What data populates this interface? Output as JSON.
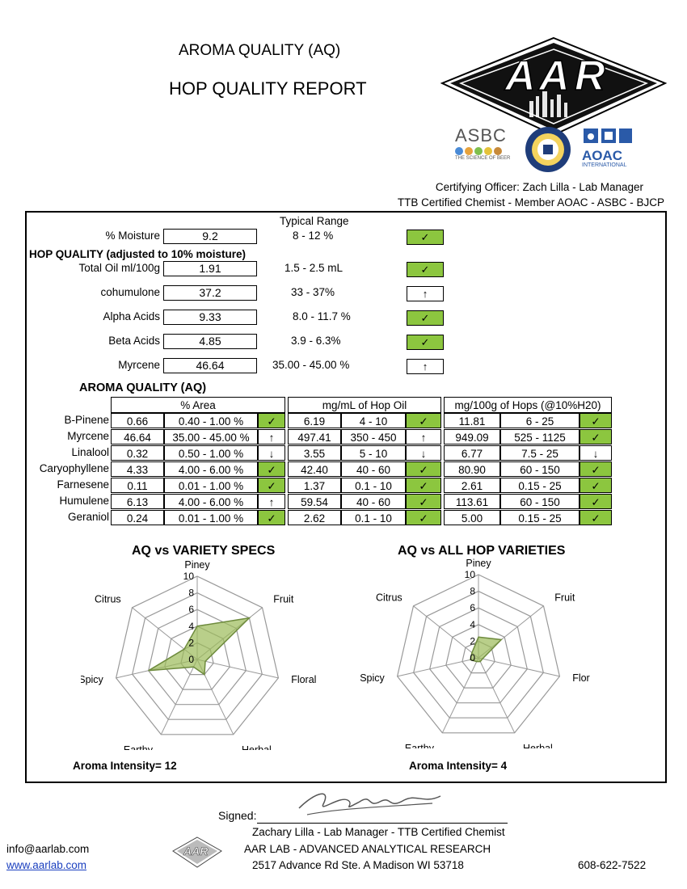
{
  "header": {
    "title1": "AROMA QUALITY (AQ)",
    "title2": "HOP QUALITY REPORT",
    "logo_text": "AAR",
    "asbc_name": "ASBC",
    "asbc_tagline": "THE SCIENCE OF BEER",
    "aoac_name": "AOAC",
    "aoac_sub": "INTERNATIONAL",
    "certifying": "Certifying Officer: Zach Lilla - Lab Manager",
    "ttb": "TTB Certified Chemist - Member AOAC - ASBC - BJCP"
  },
  "quality": {
    "typical_range_header": "Typical Range",
    "hop_quality_heading": "HOP QUALITY  (adjusted to 10% moisture)",
    "rows": [
      {
        "label": "% Moisture",
        "value": "9.2",
        "range": "8 - 12 %",
        "status": "✓"
      },
      {
        "label": "Total Oil ml/100g",
        "value": "1.91",
        "range": "1.5 - 2.5 mL",
        "status": "✓"
      },
      {
        "label": "cohumulone",
        "value": "37.2",
        "range": "33 - 37%",
        "status": "↑"
      },
      {
        "label": "Alpha Acids",
        "value": "9.33",
        "range": "8.0 - 11.7 %",
        "status": "✓"
      },
      {
        "label": "Beta Acids",
        "value": "4.85",
        "range": "3.9 - 6.3%",
        "status": "✓"
      },
      {
        "label": "Myrcene",
        "value": "46.64",
        "range": "35.00  -  45.00 %",
        "status": "↑"
      }
    ]
  },
  "aroma_table": {
    "heading": "AROMA QUALITY (AQ)",
    "groups": [
      "% Area",
      "mg/mL of Hop Oil",
      "mg/100g of Hops (@10%H20)"
    ],
    "rows": [
      {
        "name": "B-Pinene",
        "a": "0.66",
        "ar": "0.40  -  1.00 %",
        "as": "✓",
        "b": "6.19",
        "br": "4  -  10",
        "bs": "✓",
        "c": "11.81",
        "cr": "6  -  25",
        "cs": "✓"
      },
      {
        "name": "Myrcene",
        "a": "46.64",
        "ar": "35.00  -  45.00 %",
        "as": "↑",
        "b": "497.41",
        "br": "350  -  450",
        "bs": "↑",
        "c": "949.09",
        "cr": "525  -  1125",
        "cs": "✓"
      },
      {
        "name": "Linalool",
        "a": "0.32",
        "ar": "0.50  -  1.00 %",
        "as": "↓",
        "b": "3.55",
        "br": "5  -  10",
        "bs": "↓",
        "c": "6.77",
        "cr": "7.5  -  25",
        "cs": "↓"
      },
      {
        "name": "Caryophyllene",
        "a": "4.33",
        "ar": "4.00  -  6.00 %",
        "as": "✓",
        "b": "42.40",
        "br": "40  -  60",
        "bs": "✓",
        "c": "80.90",
        "cr": "60  -  150",
        "cs": "✓"
      },
      {
        "name": "Farnesene",
        "a": "0.11",
        "ar": "0.01  -  1.00 %",
        "as": "✓",
        "b": "1.37",
        "br": "0.1  -  10",
        "bs": "✓",
        "c": "2.61",
        "cr": "0.15  -  25",
        "cs": "✓"
      },
      {
        "name": "Humulene",
        "a": "6.13",
        "ar": "4.00  -  6.00 %",
        "as": "↑",
        "b": "59.54",
        "br": "40  -  60",
        "bs": "✓",
        "c": "113.61",
        "cr": "60  -  150",
        "cs": "✓"
      },
      {
        "name": "Geraniol",
        "a": "0.24",
        "ar": "0.01  -  1.00 %",
        "as": "✓",
        "b": "2.62",
        "br": "0.1  -  10",
        "bs": "✓",
        "c": "5.00",
        "cr": "0.15  -  25",
        "cs": "✓"
      }
    ]
  },
  "charts": {
    "left_title": "AQ vs VARIETY SPECS",
    "right_title": "AQ vs ALL HOP VARIETIES",
    "left_intensity": "Aroma Intensity=  12",
    "right_intensity": "Aroma Intensity=  4"
  },
  "chart_data": [
    {
      "type": "radar",
      "title": "AQ vs VARIETY SPECS",
      "axes": [
        "Piney",
        "Fruit",
        "Floral",
        "Herbal",
        "Earthy",
        "Spicy",
        "Citrus"
      ],
      "ticks": [
        "0",
        "2",
        "4",
        "6",
        "8",
        "10"
      ],
      "range": [
        0,
        10
      ],
      "values": [
        4,
        8,
        1,
        2,
        1,
        6,
        2
      ]
    },
    {
      "type": "radar",
      "title": "AQ vs ALL HOP VARIETIES",
      "axes": [
        "Piney",
        "Fruit",
        "Floral",
        "Herbal",
        "Earthy",
        "Spicy",
        "Citrus"
      ],
      "ticks": [
        "0",
        "2",
        "4",
        "6",
        "8",
        "10"
      ],
      "range": [
        0,
        10
      ],
      "values": [
        2.5,
        3.5,
        0.5,
        0.5,
        0.5,
        1,
        1
      ]
    }
  ],
  "footer": {
    "signed_label": "Signed:",
    "signer": "Zachary Lilla - Lab Manager - TTB Certified Chemist",
    "email": "info@aarlab.com",
    "website": "www.aarlab.com",
    "lab_name": "AAR LAB - ADVANCED ANALYTICAL RESEARCH",
    "address": "2517 Advance Rd Ste. A Madison WI  53718",
    "phone": "608-622-7522",
    "small_logo_text": "AAR"
  }
}
